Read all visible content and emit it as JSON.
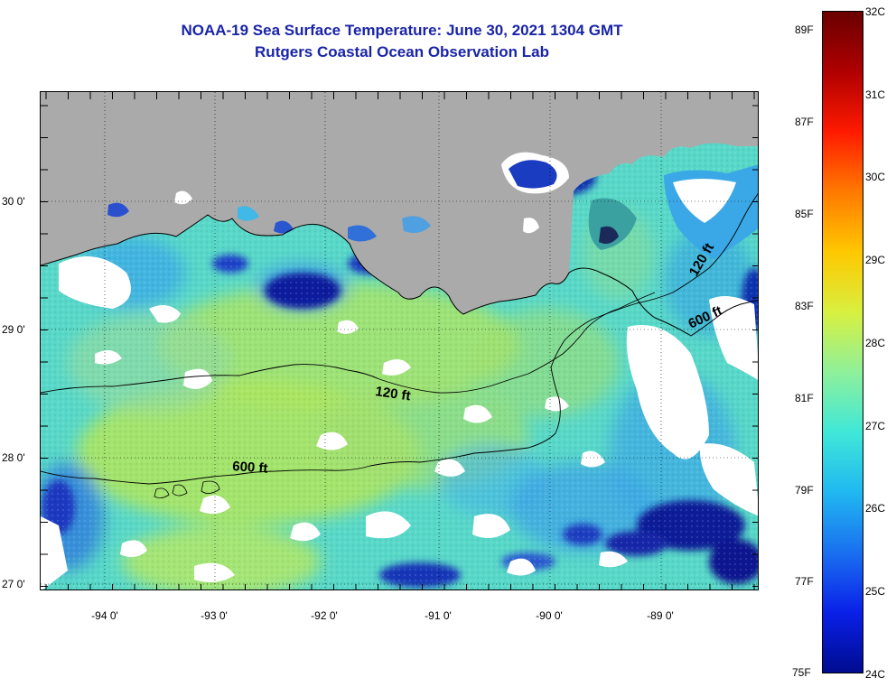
{
  "title": {
    "line1": "NOAA-19 Sea Surface Temperature:  June 30, 2021 1304 GMT",
    "line2": "Rutgers Coastal Ocean Observation Lab"
  },
  "map": {
    "lat_labels": [
      "30 0'",
      "29 0'",
      "28 0'",
      "27 0'"
    ],
    "lon_labels": [
      "-94 0'",
      "-93 0'",
      "-92 0'",
      "-91 0'",
      "-90 0'",
      "-89 0'"
    ],
    "contour_labels": [
      "120 ft",
      "600 ft",
      "120 ft",
      "600 ft"
    ],
    "colors": {
      "land": "#aaaaaa",
      "cloud": "#ffffff",
      "cold": "#0a1a9a",
      "cool": "#3ca0e8",
      "teal": "#4fd4c8",
      "warm": "#b8e860"
    }
  },
  "colorbar": {
    "celsius_labels": [
      "32C",
      "31C",
      "30C",
      "29C",
      "28C",
      "27C",
      "26C",
      "25C",
      "24C"
    ],
    "fahrenheit_labels": [
      "89F",
      "87F",
      "85F",
      "83F",
      "81F",
      "79F",
      "77F",
      "75F"
    ],
    "colors": [
      "#6a0000",
      "#b00000",
      "#ff1a00",
      "#ff7a00",
      "#ffc800",
      "#d8f040",
      "#8ff09a",
      "#40e8d8",
      "#20b8f0",
      "#1a70f0",
      "#0a20e8",
      "#000c90"
    ]
  }
}
